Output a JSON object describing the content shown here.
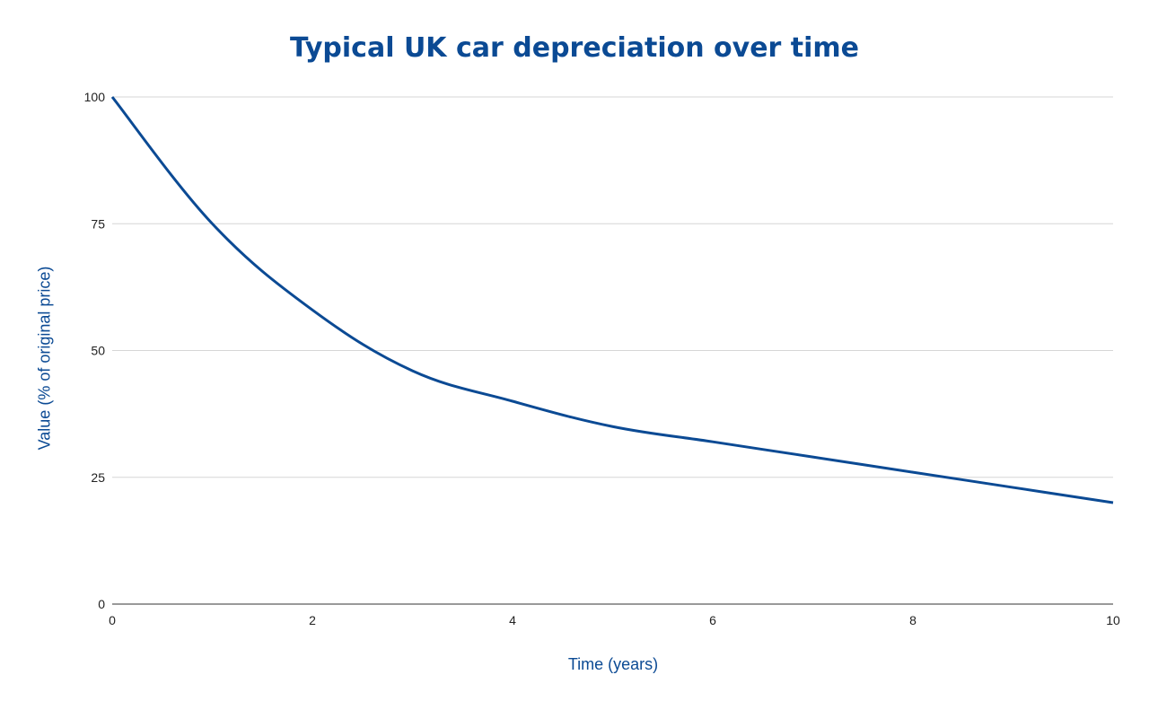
{
  "chart_data": {
    "type": "line",
    "title": "Typical UK car depreciation over time",
    "xlabel": "Time (years)",
    "ylabel": "Value (% of original price)",
    "xlim": [
      0,
      10
    ],
    "ylim": [
      0,
      100
    ],
    "xticks": [
      0,
      2,
      4,
      6,
      8,
      10
    ],
    "yticks": [
      0,
      25,
      50,
      75,
      100
    ],
    "grid": true,
    "legend": "none",
    "series": [
      {
        "color": "#0b4a94",
        "x": [
          0,
          1,
          2,
          3,
          4,
          5,
          6,
          7,
          8,
          9,
          10
        ],
        "y": [
          100,
          75,
          58,
          46,
          40,
          35,
          32,
          29,
          26,
          23,
          20
        ]
      }
    ]
  }
}
